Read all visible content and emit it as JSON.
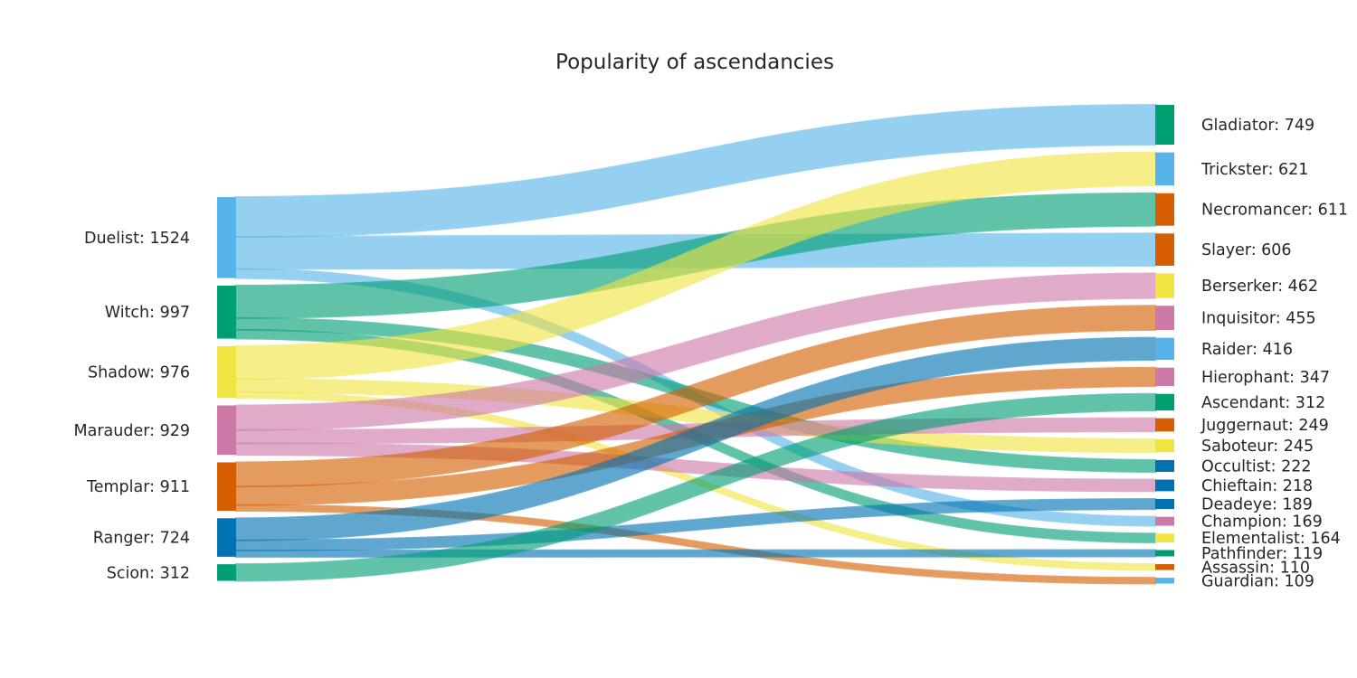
{
  "chart_data": {
    "type": "sankey",
    "title": "Popularity of ascendancies",
    "colors": {
      "blue": "#56b4e9",
      "green": "#009e73",
      "yellow": "#f0e442",
      "pink": "#cc79a7",
      "orange": "#d55e00",
      "dark_blue": "#0072b2"
    },
    "sources": [
      {
        "name": "Duelist",
        "value": 1524,
        "label": "Duelist: 1524",
        "color": "blue"
      },
      {
        "name": "Witch",
        "value": 997,
        "label": "Witch: 997",
        "color": "green"
      },
      {
        "name": "Shadow",
        "value": 976,
        "label": "Shadow: 976",
        "color": "yellow"
      },
      {
        "name": "Marauder",
        "value": 929,
        "label": "Marauder: 929",
        "color": "pink"
      },
      {
        "name": "Templar",
        "value": 911,
        "label": "Templar: 911",
        "color": "orange"
      },
      {
        "name": "Ranger",
        "value": 724,
        "label": "Ranger: 724",
        "color": "dark_blue"
      },
      {
        "name": "Scion",
        "value": 312,
        "label": "Scion: 312",
        "color": "green"
      }
    ],
    "targets": [
      {
        "name": "Gladiator",
        "value": 749,
        "label": "Gladiator: 749",
        "color": "green"
      },
      {
        "name": "Trickster",
        "value": 621,
        "label": "Trickster: 621",
        "color": "blue"
      },
      {
        "name": "Necromancer",
        "value": 611,
        "label": "Necromancer: 611",
        "color": "orange"
      },
      {
        "name": "Slayer",
        "value": 606,
        "label": "Slayer: 606",
        "color": "orange"
      },
      {
        "name": "Berserker",
        "value": 462,
        "label": "Berserker: 462",
        "color": "yellow"
      },
      {
        "name": "Inquisitor",
        "value": 455,
        "label": "Inquisitor: 455",
        "color": "pink"
      },
      {
        "name": "Raider",
        "value": 416,
        "label": "Raider: 416",
        "color": "blue"
      },
      {
        "name": "Hierophant",
        "value": 347,
        "label": "Hierophant: 347",
        "color": "pink"
      },
      {
        "name": "Ascendant",
        "value": 312,
        "label": "Ascendant: 312",
        "color": "green"
      },
      {
        "name": "Juggernaut",
        "value": 249,
        "label": "Juggernaut: 249",
        "color": "orange"
      },
      {
        "name": "Saboteur",
        "value": 245,
        "label": "Saboteur: 245",
        "color": "yellow"
      },
      {
        "name": "Occultist",
        "value": 222,
        "label": "Occultist: 222",
        "color": "dark_blue"
      },
      {
        "name": "Chieftain",
        "value": 218,
        "label": "Chieftain: 218",
        "color": "dark_blue"
      },
      {
        "name": "Deadeye",
        "value": 189,
        "label": "Deadeye: 189",
        "color": "dark_blue"
      },
      {
        "name": "Champion",
        "value": 169,
        "label": "Champion: 169",
        "color": "pink"
      },
      {
        "name": "Elementalist",
        "value": 164,
        "label": "Elementalist: 164",
        "color": "yellow"
      },
      {
        "name": "Pathfinder",
        "value": 119,
        "label": "Pathfinder: 119",
        "color": "green"
      },
      {
        "name": "Assassin",
        "value": 110,
        "label": "Assassin: 110",
        "color": "orange"
      },
      {
        "name": "Guardian",
        "value": 109,
        "label": "Guardian: 109",
        "color": "blue"
      }
    ],
    "flows": [
      {
        "source": "Duelist",
        "target": "Gladiator",
        "value": 749
      },
      {
        "source": "Duelist",
        "target": "Slayer",
        "value": 606
      },
      {
        "source": "Duelist",
        "target": "Champion",
        "value": 169
      },
      {
        "source": "Witch",
        "target": "Necromancer",
        "value": 611
      },
      {
        "source": "Witch",
        "target": "Occultist",
        "value": 222
      },
      {
        "source": "Witch",
        "target": "Elementalist",
        "value": 164
      },
      {
        "source": "Shadow",
        "target": "Trickster",
        "value": 621
      },
      {
        "source": "Shadow",
        "target": "Saboteur",
        "value": 245
      },
      {
        "source": "Shadow",
        "target": "Assassin",
        "value": 110
      },
      {
        "source": "Marauder",
        "target": "Berserker",
        "value": 462
      },
      {
        "source": "Marauder",
        "target": "Juggernaut",
        "value": 249
      },
      {
        "source": "Marauder",
        "target": "Chieftain",
        "value": 218
      },
      {
        "source": "Templar",
        "target": "Inquisitor",
        "value": 455
      },
      {
        "source": "Templar",
        "target": "Hierophant",
        "value": 347
      },
      {
        "source": "Templar",
        "target": "Guardian",
        "value": 109
      },
      {
        "source": "Ranger",
        "target": "Raider",
        "value": 416
      },
      {
        "source": "Ranger",
        "target": "Deadeye",
        "value": 189
      },
      {
        "source": "Ranger",
        "target": "Pathfinder",
        "value": 119
      },
      {
        "source": "Scion",
        "target": "Ascendant",
        "value": 312
      }
    ]
  }
}
